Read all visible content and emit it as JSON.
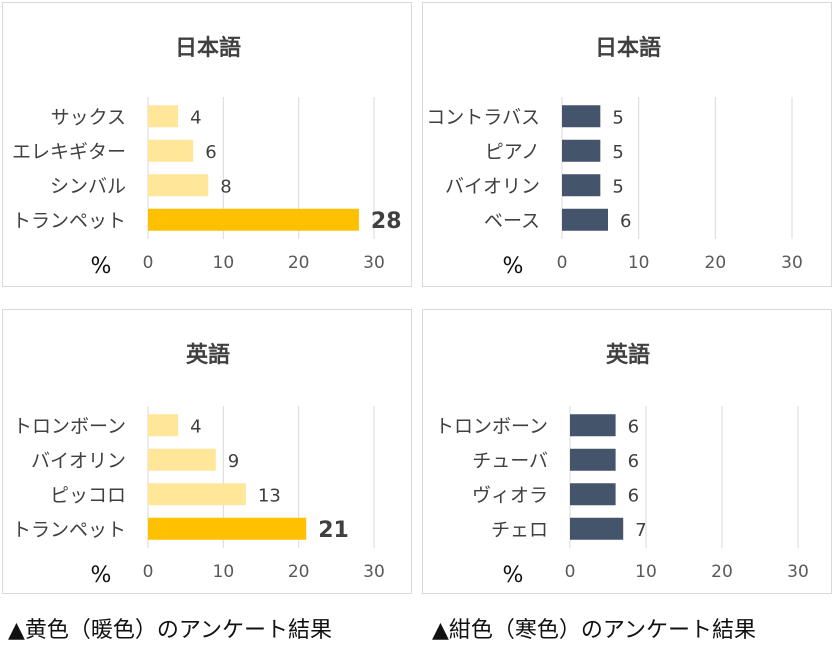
{
  "colors": {
    "warm": "#FFC000",
    "warm_light": "#FFE699",
    "cool": "#44546A"
  },
  "chart_data": [
    {
      "type": "bar",
      "orientation": "horizontal",
      "title": "日本語",
      "unit_label": "%",
      "categories": [
        "サックス",
        "エレキギター",
        "シンバル",
        "トランペット"
      ],
      "values": [
        4,
        6,
        8,
        28
      ],
      "highlight_index": 3,
      "xlim": [
        0,
        30
      ],
      "xticks": [
        0,
        10,
        20,
        30
      ],
      "grid": true,
      "palette": "warm"
    },
    {
      "type": "bar",
      "orientation": "horizontal",
      "title": "日本語",
      "unit_label": "%",
      "categories": [
        "コントラバス",
        "ピアノ",
        "バイオリン",
        "ベース"
      ],
      "values": [
        5,
        5,
        5,
        6
      ],
      "highlight_index": null,
      "xlim": [
        0,
        30
      ],
      "xticks": [
        0,
        10,
        20,
        30
      ],
      "grid": true,
      "palette": "cool"
    },
    {
      "type": "bar",
      "orientation": "horizontal",
      "title": "英語",
      "unit_label": "%",
      "categories": [
        "トロンボーン",
        "バイオリン",
        "ピッコロ",
        "トランペット"
      ],
      "values": [
        4,
        9,
        13,
        21
      ],
      "highlight_index": 3,
      "xlim": [
        0,
        30
      ],
      "xticks": [
        0,
        10,
        20,
        30
      ],
      "grid": true,
      "palette": "warm"
    },
    {
      "type": "bar",
      "orientation": "horizontal",
      "title": "英語",
      "unit_label": "%",
      "categories": [
        "トロンボーン",
        "チューバ",
        "ヴィオラ",
        "チェロ"
      ],
      "values": [
        6,
        6,
        6,
        7
      ],
      "highlight_index": null,
      "xlim": [
        0,
        30
      ],
      "xticks": [
        0,
        10,
        20,
        30
      ],
      "grid": true,
      "palette": "cool"
    }
  ],
  "captions": {
    "warm": "▲黄色（暖色）のアンケート結果",
    "cool": "▲紺色（寒色）のアンケート結果"
  }
}
